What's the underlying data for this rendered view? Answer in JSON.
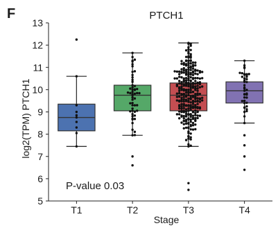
{
  "chart_data": {
    "type": "box",
    "panel_label": "F",
    "title": "PTCH1",
    "xlabel": "Stage",
    "ylabel": "log2(TPM) PTCH1",
    "annotation": "P-value 0.03",
    "ylim": [
      5,
      13
    ],
    "yticks": [
      "5",
      "6",
      "7",
      "8",
      "9",
      "10",
      "11",
      "12",
      "13"
    ],
    "ytick_values": [
      5,
      6,
      7,
      8,
      9,
      10,
      11,
      12,
      13
    ],
    "categories": [
      "T1",
      "T2",
      "T3",
      "T4"
    ],
    "grid": false,
    "series": [
      {
        "category": "T1",
        "color": "#4c72b0",
        "whisker_low": 7.45,
        "q1": 8.15,
        "median": 8.75,
        "q3": 9.35,
        "whisker_high": 10.6,
        "points": [
          12.25,
          10.6,
          9.3,
          9.0,
          8.85,
          8.75,
          8.55,
          8.3,
          8.05,
          7.45
        ],
        "point_count": 10
      },
      {
        "category": "T2",
        "color": "#55a868",
        "whisker_low": 7.95,
        "q1": 9.05,
        "median": 9.75,
        "q3": 10.2,
        "whisker_high": 11.65,
        "points": [
          11.65,
          11.3,
          11.05,
          10.8,
          10.55,
          10.35,
          10.2,
          10.1,
          10.0,
          9.9,
          9.8,
          9.75,
          9.65,
          9.55,
          9.4,
          9.3,
          9.15,
          9.05,
          8.9,
          8.7,
          8.5,
          8.2,
          7.95,
          7.0,
          6.6
        ],
        "point_count": 55
      },
      {
        "category": "T3",
        "color": "#c44e52",
        "whisker_low": 7.45,
        "q1": 9.05,
        "median": 9.75,
        "q3": 10.3,
        "whisker_high": 12.1,
        "points": [
          12.1,
          11.9,
          11.7,
          11.5,
          11.3,
          11.1,
          10.9,
          10.7,
          10.5,
          10.3,
          10.15,
          10.0,
          9.85,
          9.75,
          9.6,
          9.45,
          9.3,
          9.15,
          9.05,
          8.9,
          8.7,
          8.5,
          8.3,
          8.05,
          7.8,
          7.45,
          5.8,
          5.5
        ],
        "point_count": 300
      },
      {
        "category": "T4",
        "color": "#8172b2",
        "whisker_low": 8.5,
        "q1": 9.4,
        "median": 9.95,
        "q3": 10.35,
        "whisker_high": 11.3,
        "points": [
          11.3,
          11.0,
          10.7,
          10.5,
          10.35,
          10.2,
          10.05,
          9.95,
          9.8,
          9.65,
          9.5,
          9.4,
          9.2,
          9.0,
          8.8,
          8.5,
          7.95,
          7.5,
          7.0,
          6.4
        ],
        "point_count": 45
      }
    ]
  }
}
